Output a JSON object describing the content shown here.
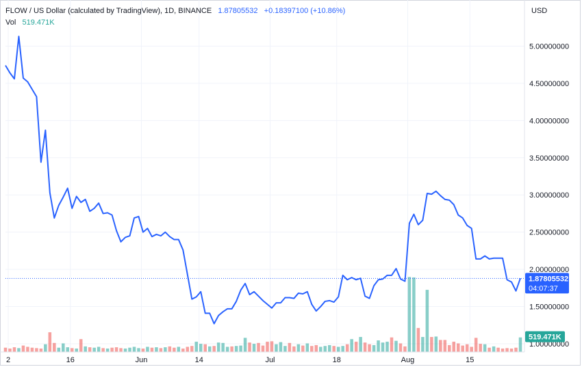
{
  "header": {
    "title": "FLOW / US Dollar (calculated by TradingView), 1D, BINANCE",
    "last_price": "1.87805532",
    "change": "+0.18397100 (+10.86%)",
    "volume_label": "Vol",
    "volume_value": "519.471K",
    "currency": "USD"
  },
  "badges": {
    "price": "1.87805532",
    "countdown": "04:07:37",
    "volume": "519.471K"
  },
  "colors": {
    "line": "#2962ff",
    "volume_up": "#26a69a",
    "volume_down": "#ef5350",
    "grid": "#f0f3fa"
  },
  "chart_data": {
    "type": "line",
    "title": "FLOW / US Dollar (calculated by TradingView), 1D, BINANCE",
    "ylim": [
      1.0,
      5.5
    ],
    "y_ticks": [
      "5.00000000",
      "4.50000000",
      "4.00000000",
      "3.50000000",
      "3.00000000",
      "2.50000000",
      "2.00000000",
      "1.50000000",
      "1.00000000"
    ],
    "x_ticks": [
      "2",
      "16",
      "Jun",
      "14",
      "Jul",
      "18",
      "Aug",
      "15"
    ],
    "last_value": 1.87805532,
    "series": [
      {
        "values": [
          4.74,
          4.64,
          4.56,
          5.13,
          4.57,
          4.52,
          4.42,
          4.32,
          3.44,
          3.87,
          3.03,
          2.69,
          2.86,
          2.97,
          3.09,
          2.82,
          2.98,
          2.9,
          2.94,
          2.78,
          2.82,
          2.89,
          2.75,
          2.76,
          2.73,
          2.52,
          2.37,
          2.43,
          2.45,
          2.69,
          2.71,
          2.5,
          2.55,
          2.44,
          2.47,
          2.45,
          2.5,
          2.44,
          2.4,
          2.4,
          2.26,
          1.93,
          1.6,
          1.63,
          1.7,
          1.41,
          1.41,
          1.27,
          1.38,
          1.43,
          1.47,
          1.47,
          1.57,
          1.72,
          1.81,
          1.66,
          1.7,
          1.64,
          1.58,
          1.53,
          1.48,
          1.55,
          1.55,
          1.62,
          1.62,
          1.61,
          1.68,
          1.67,
          1.7,
          1.53,
          1.44,
          1.5,
          1.57,
          1.58,
          1.56,
          1.63,
          1.92,
          1.86,
          1.89,
          1.86,
          1.88,
          1.64,
          1.61,
          1.78,
          1.86,
          1.87,
          1.92,
          1.92,
          2.01,
          1.87,
          1.84,
          2.62,
          2.74,
          2.6,
          2.66,
          3.02,
          3.01,
          3.05,
          2.99,
          2.94,
          2.93,
          2.87,
          2.73,
          2.69,
          2.59,
          2.55,
          2.14,
          2.14,
          2.18,
          2.14,
          2.15,
          2.15,
          2.15,
          1.86,
          1.83,
          1.71,
          1.88
        ]
      }
    ],
    "volume": {
      "label": "Vol",
      "values": [
        0.1,
        0.08,
        0.11,
        0.09,
        0.15,
        0.12,
        0.1,
        0.09,
        0.08,
        0.18,
        0.46,
        0.21,
        0.1,
        0.2,
        0.11,
        0.09,
        0.08,
        0.3,
        0.13,
        0.11,
        0.1,
        0.12,
        0.09,
        0.08,
        0.1,
        0.11,
        0.09,
        0.08,
        0.1,
        0.12,
        0.09,
        0.08,
        0.12,
        0.1,
        0.11,
        0.09,
        0.11,
        0.13,
        0.1,
        0.12,
        0.08,
        0.12,
        0.14,
        0.24,
        0.19,
        0.18,
        0.13,
        0.14,
        0.22,
        0.21,
        0.12,
        0.13,
        0.14,
        0.15,
        0.33,
        0.22,
        0.19,
        0.21,
        0.15,
        0.24,
        0.25,
        0.18,
        0.23,
        0.14,
        0.21,
        0.13,
        0.18,
        0.15,
        0.2,
        0.14,
        0.16,
        0.12,
        0.14,
        0.16,
        0.14,
        0.12,
        0.14,
        0.18,
        0.3,
        0.24,
        0.35,
        0.22,
        0.18,
        0.16,
        0.27,
        0.22,
        0.24,
        0.34,
        0.26,
        0.2,
        0.13,
        1.75,
        1.74,
        0.56,
        0.35,
        1.45,
        0.35,
        0.36,
        0.28,
        0.28,
        0.16,
        0.24,
        0.2,
        0.15,
        0.18,
        0.12,
        0.33,
        0.19,
        0.18,
        0.1,
        0.13,
        0.1,
        0.08,
        0.09,
        0.08,
        0.1,
        0.34
      ],
      "up": [
        0,
        0,
        0,
        1,
        0,
        0,
        0,
        0,
        0,
        1,
        0,
        0,
        1,
        1,
        1,
        0,
        1,
        0,
        1,
        0,
        1,
        1,
        0,
        1,
        0,
        0,
        0,
        1,
        1,
        1,
        1,
        0,
        1,
        0,
        1,
        0,
        1,
        0,
        0,
        1,
        0,
        0,
        0,
        1,
        1,
        0,
        1,
        0,
        1,
        1,
        1,
        0,
        1,
        1,
        1,
        0,
        1,
        0,
        0,
        0,
        0,
        1,
        1,
        1,
        0,
        0,
        1,
        0,
        1,
        0,
        0,
        1,
        1,
        1,
        0,
        1,
        1,
        0,
        1,
        0,
        1,
        0,
        0,
        1,
        1,
        1,
        1,
        0,
        1,
        0,
        0,
        1,
        1,
        0,
        1,
        1,
        0,
        1,
        0,
        0,
        0,
        0,
        0,
        0,
        0,
        0,
        0,
        0,
        1,
        0,
        1,
        0,
        0,
        0,
        0,
        0,
        1
      ]
    }
  }
}
